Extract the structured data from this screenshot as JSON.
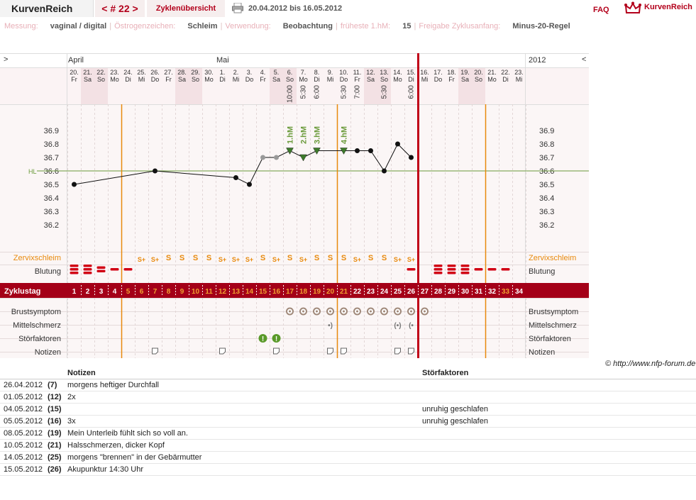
{
  "header": {
    "app_title": "KurvenReich",
    "cycle_nav": "< # 22 >",
    "overview_label": "Zyklenübersicht",
    "date_range": "20.04.2012 bis 16.05.2012",
    "faq_label": "FAQ",
    "logo_text": "KurvenReich"
  },
  "settings": [
    {
      "label": "Messung:",
      "value": "vaginal / digital"
    },
    {
      "label": "Östrogenzeichen:",
      "value": "Schleim"
    },
    {
      "label": "Verwendung:",
      "value": "Beobachtung"
    },
    {
      "label": "früheste 1.hM:",
      "value": "15"
    },
    {
      "label": "Freigabe Zyklusanfang:",
      "value": "Minus-20-Regel"
    }
  ],
  "chart": {
    "nav_left": ">",
    "nav_right": "<",
    "year": "2012",
    "month_labels": [
      {
        "col": 0,
        "text": "April"
      },
      {
        "col": 11,
        "text": "Mai"
      }
    ],
    "days": [
      {
        "d": "20.",
        "w": "Fr"
      },
      {
        "d": "21.",
        "w": "Sa",
        "we": 1
      },
      {
        "d": "22.",
        "w": "So",
        "we": 1
      },
      {
        "d": "23.",
        "w": "Mo"
      },
      {
        "d": "24.",
        "w": "Di"
      },
      {
        "d": "25.",
        "w": "Mi"
      },
      {
        "d": "26.",
        "w": "Do"
      },
      {
        "d": "27.",
        "w": "Fr"
      },
      {
        "d": "28.",
        "w": "Sa",
        "we": 1
      },
      {
        "d": "29.",
        "w": "So",
        "we": 1
      },
      {
        "d": "30.",
        "w": "Mo"
      },
      {
        "d": "1.",
        "w": "Di"
      },
      {
        "d": "2.",
        "w": "Mi"
      },
      {
        "d": "3.",
        "w": "Do"
      },
      {
        "d": "4.",
        "w": "Fr"
      },
      {
        "d": "5.",
        "w": "Sa",
        "we": 1
      },
      {
        "d": "6.",
        "w": "So",
        "we": 1
      },
      {
        "d": "7.",
        "w": "Mo"
      },
      {
        "d": "8.",
        "w": "Di"
      },
      {
        "d": "9.",
        "w": "Mi"
      },
      {
        "d": "10.",
        "w": "Do"
      },
      {
        "d": "11.",
        "w": "Fr"
      },
      {
        "d": "12.",
        "w": "Sa",
        "we": 1
      },
      {
        "d": "13.",
        "w": "So",
        "we": 1
      },
      {
        "d": "14.",
        "w": "Mo"
      },
      {
        "d": "15.",
        "w": "Di"
      },
      {
        "d": "16.",
        "w": "Mi"
      },
      {
        "d": "17.",
        "w": "Do"
      },
      {
        "d": "18.",
        "w": "Fr"
      },
      {
        "d": "19.",
        "w": "Sa",
        "we": 1
      },
      {
        "d": "20.",
        "w": "So",
        "we": 1
      },
      {
        "d": "21.",
        "w": "Mo"
      },
      {
        "d": "22.",
        "w": "Di"
      },
      {
        "d": "23.",
        "w": "Mi"
      }
    ],
    "times": [
      {
        "col": 16,
        "t": "10:00"
      },
      {
        "col": 17,
        "t": "5:30"
      },
      {
        "col": 18,
        "t": "6:00"
      },
      {
        "col": 20,
        "t": "5:30"
      },
      {
        "col": 21,
        "t": "7:00"
      },
      {
        "col": 23,
        "t": "5:30"
      },
      {
        "col": 25,
        "t": "6:00"
      }
    ],
    "y_ticks": [
      "36.9",
      "36.8",
      "36.7",
      "36.6",
      "36.5",
      "36.4",
      "36.3",
      "36.2"
    ],
    "hl_label": "HL",
    "row_labels": {
      "cervix": "Zervixschleim",
      "bleeding": "Blutung",
      "cycleday": "Zyklustag",
      "breast": "Brustsymptom",
      "midpain": "Mittelschmerz",
      "disturb": "Störfaktoren",
      "notes": "Notizen"
    },
    "cycle_days": [
      "1",
      "2",
      "3",
      "4",
      "5",
      "6",
      "7",
      "8",
      "9",
      "10",
      "11",
      "12",
      "13",
      "14",
      "15",
      "16",
      "17",
      "18",
      "19",
      "20",
      "21",
      "22",
      "23",
      "24",
      "25",
      "26",
      "27",
      "28",
      "29",
      "30",
      "31",
      "32",
      "33",
      "34"
    ],
    "cervix_marks": [
      {
        "col": 5,
        "t": "S+"
      },
      {
        "col": 6,
        "t": "S+"
      },
      {
        "col": 7,
        "t": "S"
      },
      {
        "col": 8,
        "t": "S"
      },
      {
        "col": 9,
        "t": "S"
      },
      {
        "col": 10,
        "t": "S"
      },
      {
        "col": 11,
        "t": "S+"
      },
      {
        "col": 12,
        "t": "S+"
      },
      {
        "col": 13,
        "t": "S+"
      },
      {
        "col": 14,
        "t": "S"
      },
      {
        "col": 15,
        "t": "S+"
      },
      {
        "col": 16,
        "t": "S"
      },
      {
        "col": 17,
        "t": "S+"
      },
      {
        "col": 18,
        "t": "S"
      },
      {
        "col": 19,
        "t": "S"
      },
      {
        "col": 20,
        "t": "S"
      },
      {
        "col": 21,
        "t": "S+"
      },
      {
        "col": 22,
        "t": "S"
      },
      {
        "col": 23,
        "t": "S"
      },
      {
        "col": 24,
        "t": "S+"
      },
      {
        "col": 25,
        "t": "S+"
      }
    ],
    "bleeding": [
      {
        "col": 0,
        "lvl": 3
      },
      {
        "col": 1,
        "lvl": 3
      },
      {
        "col": 2,
        "lvl": 2
      },
      {
        "col": 3,
        "lvl": 1
      },
      {
        "col": 4,
        "lvl": 1
      },
      {
        "col": 25,
        "lvl": 1
      },
      {
        "col": 27,
        "lvl": 3
      },
      {
        "col": 28,
        "lvl": 3
      },
      {
        "col": 29,
        "lvl": 3
      },
      {
        "col": 30,
        "lvl": 1
      },
      {
        "col": 31,
        "lvl": 1
      },
      {
        "col": 32,
        "lvl": 1
      }
    ],
    "breast_cols": [
      16,
      17,
      18,
      19,
      20,
      21,
      22,
      23,
      24,
      25,
      26
    ],
    "midpain": [
      {
        "col": 19,
        "t": "•)"
      },
      {
        "col": 24,
        "t": "(•)"
      },
      {
        "col": 25,
        "t": "(•"
      }
    ],
    "disturb_cols": [
      14,
      15
    ],
    "note_cols": [
      6,
      11,
      15,
      19,
      20,
      24,
      25
    ],
    "orange_lines_cols": [
      4,
      20,
      31
    ],
    "red_line_col": 26,
    "ovulation_labels": [
      {
        "col": 16,
        "t": "1.hM"
      },
      {
        "col": 17,
        "t": "2.hM"
      },
      {
        "col": 18,
        "t": "3.hM"
      },
      {
        "col": 20,
        "t": "4.hM"
      }
    ]
  },
  "chart_data": {
    "type": "line",
    "title": "",
    "xlabel": "",
    "ylabel": "",
    "ylim": [
      36.2,
      36.9
    ],
    "coverline": 36.6,
    "series": [
      {
        "values": [
          {
            "x": "20.04.",
            "y": 36.5
          },
          {
            "x": "26.04.",
            "y": 36.6
          },
          {
            "x": "02.05.",
            "y": 36.55
          },
          {
            "x": "03.05.",
            "y": 36.5
          },
          {
            "x": "04.05.",
            "y": 36.7
          },
          {
            "x": "05.05.",
            "y": 36.7
          },
          {
            "x": "06.05.",
            "y": 36.75
          },
          {
            "x": "07.05.",
            "y": 36.7
          },
          {
            "x": "08.05.",
            "y": 36.75
          },
          {
            "x": "10.05.",
            "y": 36.75
          },
          {
            "x": "11.05.",
            "y": 36.75
          },
          {
            "x": "12.05.",
            "y": 36.75
          },
          {
            "x": "13.05.",
            "y": 36.6
          },
          {
            "x": "14.05.",
            "y": 36.8
          },
          {
            "x": "15.05.",
            "y": 36.7
          }
        ]
      }
    ]
  },
  "credit": "© http://www.nfp-forum.de",
  "table": {
    "col_notes": "Notizen",
    "col_disturb": "Störfaktoren",
    "rows": [
      {
        "date": "26.04.2012",
        "cd": "(7)",
        "note": "morgens heftiger Durchfall",
        "disturb": ""
      },
      {
        "date": "01.05.2012",
        "cd": "(12)",
        "note": "2x",
        "disturb": ""
      },
      {
        "date": "04.05.2012",
        "cd": "(15)",
        "note": "",
        "disturb": "unruhig geschlafen"
      },
      {
        "date": "05.05.2012",
        "cd": "(16)",
        "note": "3x",
        "disturb": "unruhig geschlafen"
      },
      {
        "date": "08.05.2012",
        "cd": "(19)",
        "note": "Mein Unterleib fühlt sich so voll an.",
        "disturb": ""
      },
      {
        "date": "10.05.2012",
        "cd": "(21)",
        "note": "Halsschmerzen, dicker Kopf",
        "disturb": ""
      },
      {
        "date": "14.05.2012",
        "cd": "(25)",
        "note": "morgens \"brennen\" in der Gebärmutter",
        "disturb": ""
      },
      {
        "date": "15.05.2012",
        "cd": "(26)",
        "note": "Akupunktur 14:30 Uhr",
        "disturb": ""
      }
    ]
  },
  "colors": {
    "accent": "#b3001b",
    "orange": "#e8890c",
    "green": "#6a9a3a",
    "weekend": "#f4e4e6",
    "panel": "#fbf4f4"
  }
}
